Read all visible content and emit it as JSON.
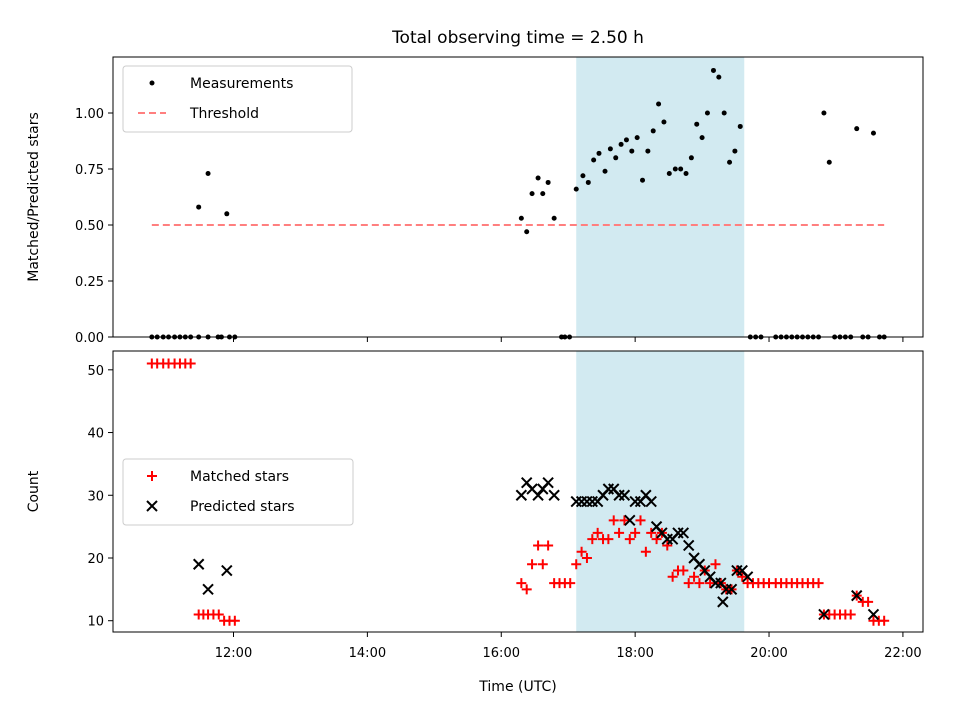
{
  "chart_data": {
    "type": "scatter",
    "title": "Total observing time = 2.50 h",
    "highlight": {
      "x_start": 17.12,
      "x_end": 19.63,
      "color": "#add8e6"
    },
    "panels": [
      {
        "id": "top",
        "ylabel": "Matched/Predicted stars",
        "xlabel": "",
        "xlim": [
          10.2,
          22.3
        ],
        "ylim": [
          0,
          1.25
        ],
        "yticks": [
          0.0,
          0.25,
          0.5,
          0.75,
          1.0
        ],
        "ytick_labels": [
          "0.00",
          "0.25",
          "0.50",
          "0.75",
          "1.00"
        ],
        "legend_position": "upper-left",
        "series": [
          {
            "name": "Measurements",
            "marker": "dot",
            "color": "#000000",
            "points": [
              [
                10.78,
                0
              ],
              [
                10.86,
                0
              ],
              [
                10.95,
                0
              ],
              [
                11.03,
                0
              ],
              [
                11.12,
                0
              ],
              [
                11.2,
                0
              ],
              [
                11.28,
                0
              ],
              [
                11.36,
                0
              ],
              [
                11.48,
                0
              ],
              [
                11.62,
                0
              ],
              [
                11.77,
                0
              ],
              [
                11.82,
                0
              ],
              [
                11.94,
                0
              ],
              [
                12.02,
                0
              ],
              [
                11.48,
                0.58
              ],
              [
                11.62,
                0.73
              ],
              [
                11.9,
                0.55
              ],
              [
                16.3,
                0.53
              ],
              [
                16.38,
                0.47
              ],
              [
                16.46,
                0.64
              ],
              [
                16.55,
                0.71
              ],
              [
                16.62,
                0.64
              ],
              [
                16.7,
                0.69
              ],
              [
                16.79,
                0.53
              ],
              [
                16.9,
                0
              ],
              [
                16.95,
                0
              ],
              [
                17.02,
                0
              ],
              [
                17.12,
                0.66
              ],
              [
                17.22,
                0.72
              ],
              [
                17.3,
                0.69
              ],
              [
                17.38,
                0.79
              ],
              [
                17.46,
                0.82
              ],
              [
                17.55,
                0.74
              ],
              [
                17.63,
                0.84
              ],
              [
                17.71,
                0.8
              ],
              [
                17.79,
                0.86
              ],
              [
                17.87,
                0.88
              ],
              [
                17.95,
                0.83
              ],
              [
                18.03,
                0.89
              ],
              [
                18.11,
                0.7
              ],
              [
                18.19,
                0.83
              ],
              [
                18.27,
                0.92
              ],
              [
                18.35,
                1.04
              ],
              [
                18.43,
                0.96
              ],
              [
                18.51,
                0.73
              ],
              [
                18.6,
                0.75
              ],
              [
                18.68,
                0.75
              ],
              [
                18.76,
                0.73
              ],
              [
                18.84,
                0.8
              ],
              [
                18.92,
                0.95
              ],
              [
                19.0,
                0.89
              ],
              [
                19.08,
                1.0
              ],
              [
                19.17,
                1.19
              ],
              [
                19.25,
                1.16
              ],
              [
                19.33,
                1.0
              ],
              [
                19.41,
                0.78
              ],
              [
                19.49,
                0.83
              ],
              [
                19.57,
                0.94
              ],
              [
                19.72,
                0
              ],
              [
                19.8,
                0
              ],
              [
                19.88,
                0
              ],
              [
                20.1,
                0
              ],
              [
                20.18,
                0
              ],
              [
                20.26,
                0
              ],
              [
                20.34,
                0
              ],
              [
                20.42,
                0
              ],
              [
                20.5,
                0
              ],
              [
                20.58,
                0
              ],
              [
                20.66,
                0
              ],
              [
                20.74,
                0
              ],
              [
                20.98,
                0
              ],
              [
                21.06,
                0
              ],
              [
                21.14,
                0
              ],
              [
                21.22,
                0
              ],
              [
                21.4,
                0
              ],
              [
                21.48,
                0
              ],
              [
                21.65,
                0
              ],
              [
                21.72,
                0
              ],
              [
                20.82,
                1.0
              ],
              [
                20.9,
                0.78
              ],
              [
                21.31,
                0.93
              ],
              [
                21.56,
                0.91
              ]
            ]
          },
          {
            "name": "Threshold",
            "marker": "dashed-line",
            "color": "#ff7f7f",
            "points": [
              [
                10.78,
                0.5
              ],
              [
                21.72,
                0.5
              ]
            ]
          }
        ]
      },
      {
        "id": "bottom",
        "ylabel": "Count",
        "xlabel": "Time (UTC)",
        "xlim": [
          10.2,
          22.3
        ],
        "ylim": [
          8.2,
          53.0
        ],
        "yticks": [
          10,
          20,
          30,
          40,
          50
        ],
        "ytick_labels": [
          "10",
          "20",
          "30",
          "40",
          "50"
        ],
        "xticks": [
          12,
          14,
          16,
          18,
          20,
          22
        ],
        "xtick_labels": [
          "12:00",
          "14:00",
          "16:00",
          "18:00",
          "20:00",
          "22:00"
        ],
        "legend_position": "center-left",
        "series": [
          {
            "name": "Matched stars",
            "marker": "plus",
            "color": "#ff0000",
            "points": [
              [
                10.78,
                51
              ],
              [
                10.86,
                51
              ],
              [
                10.95,
                51
              ],
              [
                11.03,
                51
              ],
              [
                11.12,
                51
              ],
              [
                11.2,
                51
              ],
              [
                11.28,
                51
              ],
              [
                11.36,
                51
              ],
              [
                11.48,
                11
              ],
              [
                11.55,
                11
              ],
              [
                11.62,
                11
              ],
              [
                11.7,
                11
              ],
              [
                11.78,
                11
              ],
              [
                11.86,
                10
              ],
              [
                11.94,
                10
              ],
              [
                12.02,
                10
              ],
              [
                16.3,
                16
              ],
              [
                16.38,
                15
              ],
              [
                16.46,
                19
              ],
              [
                16.55,
                22
              ],
              [
                16.62,
                19
              ],
              [
                16.7,
                22
              ],
              [
                16.79,
                16
              ],
              [
                16.87,
                16
              ],
              [
                16.95,
                16
              ],
              [
                17.03,
                16
              ],
              [
                17.12,
                19
              ],
              [
                17.2,
                21
              ],
              [
                17.28,
                20
              ],
              [
                17.36,
                23
              ],
              [
                17.44,
                24
              ],
              [
                17.52,
                23
              ],
              [
                17.6,
                23
              ],
              [
                17.68,
                26
              ],
              [
                17.76,
                24
              ],
              [
                17.84,
                26
              ],
              [
                17.92,
                23
              ],
              [
                18.0,
                24
              ],
              [
                18.08,
                26
              ],
              [
                18.16,
                21
              ],
              [
                18.24,
                24
              ],
              [
                18.32,
                23
              ],
              [
                18.4,
                24
              ],
              [
                18.48,
                22
              ],
              [
                18.56,
                17
              ],
              [
                18.64,
                18
              ],
              [
                18.72,
                18
              ],
              [
                18.8,
                16
              ],
              [
                18.88,
                17
              ],
              [
                18.96,
                16
              ],
              [
                19.04,
                18
              ],
              [
                19.12,
                16
              ],
              [
                19.2,
                19
              ],
              [
                19.28,
                16
              ],
              [
                19.36,
                15
              ],
              [
                19.44,
                15
              ],
              [
                19.52,
                18
              ],
              [
                19.6,
                17
              ],
              [
                19.68,
                16
              ],
              [
                19.76,
                16
              ],
              [
                19.84,
                16
              ],
              [
                19.92,
                16
              ],
              [
                20.0,
                16
              ],
              [
                20.1,
                16
              ],
              [
                20.18,
                16
              ],
              [
                20.26,
                16
              ],
              [
                20.34,
                16
              ],
              [
                20.42,
                16
              ],
              [
                20.5,
                16
              ],
              [
                20.58,
                16
              ],
              [
                20.66,
                16
              ],
              [
                20.74,
                16
              ],
              [
                20.82,
                11
              ],
              [
                20.9,
                11
              ],
              [
                20.98,
                11
              ],
              [
                21.06,
                11
              ],
              [
                21.14,
                11
              ],
              [
                21.22,
                11
              ],
              [
                21.31,
                14
              ],
              [
                21.4,
                13
              ],
              [
                21.48,
                13
              ],
              [
                21.56,
                10
              ],
              [
                21.64,
                10
              ],
              [
                21.72,
                10
              ]
            ]
          },
          {
            "name": "Predicted stars",
            "marker": "x",
            "color": "#000000",
            "points": [
              [
                11.48,
                19
              ],
              [
                11.62,
                15
              ],
              [
                11.9,
                18
              ],
              [
                16.3,
                30
              ],
              [
                16.38,
                32
              ],
              [
                16.46,
                31
              ],
              [
                16.55,
                30
              ],
              [
                16.62,
                31
              ],
              [
                16.7,
                32
              ],
              [
                16.79,
                30
              ],
              [
                17.12,
                29
              ],
              [
                17.2,
                29
              ],
              [
                17.28,
                29
              ],
              [
                17.36,
                29
              ],
              [
                17.44,
                29
              ],
              [
                17.52,
                30
              ],
              [
                17.6,
                31
              ],
              [
                17.68,
                31
              ],
              [
                17.76,
                30
              ],
              [
                17.84,
                30
              ],
              [
                17.92,
                26
              ],
              [
                18.0,
                29
              ],
              [
                18.08,
                29
              ],
              [
                18.16,
                30
              ],
              [
                18.24,
                29
              ],
              [
                18.32,
                25
              ],
              [
                18.4,
                24
              ],
              [
                18.48,
                23
              ],
              [
                18.56,
                23
              ],
              [
                18.64,
                24
              ],
              [
                18.72,
                24
              ],
              [
                18.8,
                22
              ],
              [
                18.88,
                20
              ],
              [
                18.96,
                19
              ],
              [
                19.04,
                18
              ],
              [
                19.12,
                17
              ],
              [
                19.2,
                16
              ],
              [
                19.28,
                16
              ],
              [
                19.31,
                13
              ],
              [
                19.36,
                15
              ],
              [
                19.44,
                15
              ],
              [
                19.52,
                18
              ],
              [
                19.6,
                18
              ],
              [
                19.68,
                17
              ],
              [
                20.82,
                11
              ],
              [
                21.31,
                14
              ],
              [
                21.56,
                11
              ]
            ]
          }
        ]
      }
    ]
  }
}
